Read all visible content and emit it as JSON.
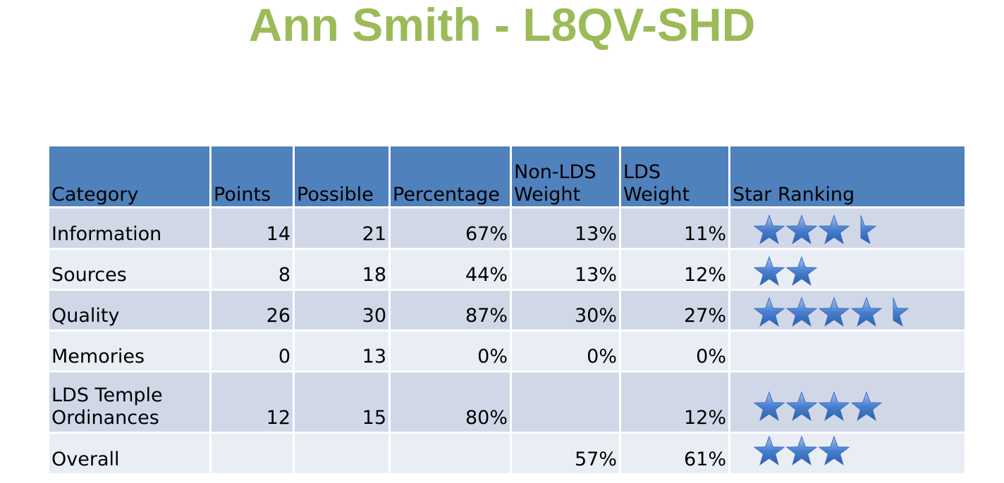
{
  "title": "Ann Smith - L8QV-SHD",
  "headers": [
    "Category",
    "Points",
    "Possible",
    "Percentage",
    "Non-LDS Weight",
    "LDS Weight",
    "Star Ranking"
  ],
  "rows": [
    {
      "category": "Information",
      "points": "14",
      "possible": "21",
      "percentage": "67%",
      "non_lds_weight": "13%",
      "lds_weight": "11%",
      "stars": 3.5
    },
    {
      "category": "Sources",
      "points": "8",
      "possible": "18",
      "percentage": "44%",
      "non_lds_weight": "13%",
      "lds_weight": "12%",
      "stars": 2
    },
    {
      "category": "Quality",
      "points": "26",
      "possible": "30",
      "percentage": "87%",
      "non_lds_weight": "30%",
      "lds_weight": "27%",
      "stars": 4.5
    },
    {
      "category": "Memories",
      "points": "0",
      "possible": "13",
      "percentage": "0%",
      "non_lds_weight": "0%",
      "lds_weight": "0%",
      "stars": 0
    },
    {
      "category": "LDS Temple Ordinances",
      "points": "12",
      "possible": "15",
      "percentage": "80%",
      "non_lds_weight": "",
      "lds_weight": "12%",
      "stars": 4
    },
    {
      "category": "Overall",
      "points": "",
      "possible": "",
      "percentage": "",
      "non_lds_weight": "57%",
      "lds_weight": "61%",
      "stars": 3
    }
  ],
  "colors": {
    "title": "#9bbb59",
    "header_bg": "#4f81bd",
    "row_dark": "#d0d8e8",
    "row_light": "#e9edf4",
    "star": "#4a7fd0"
  },
  "icons": {
    "star": "star-icon",
    "half_star": "half-star-icon"
  }
}
